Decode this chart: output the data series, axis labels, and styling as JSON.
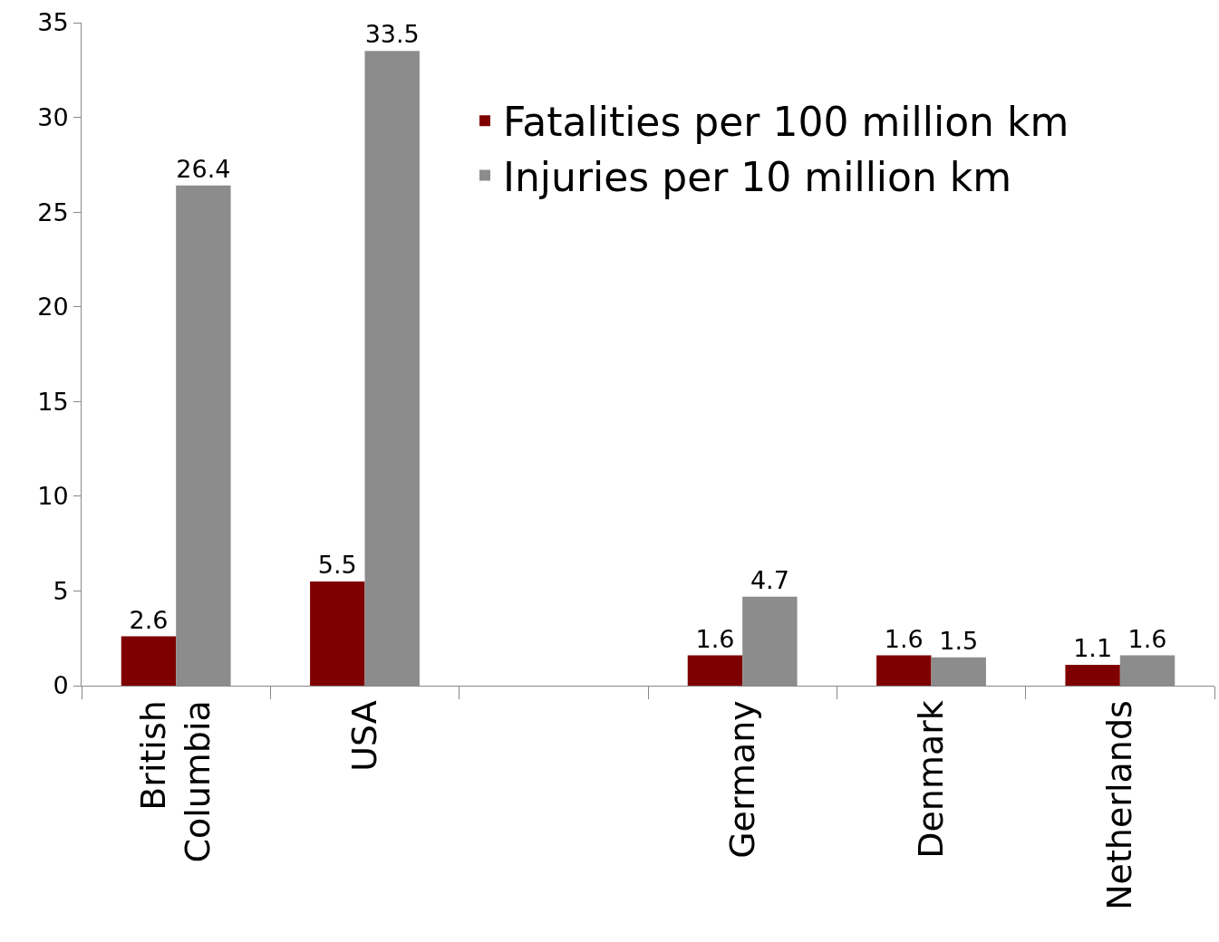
{
  "chart_data": {
    "type": "bar",
    "categories": [
      "British Columbia",
      "USA",
      null,
      "Germany",
      "Denmark",
      "Netherlands"
    ],
    "series": [
      {
        "name": "Fatalities per 100 million km",
        "color": "#7f0000",
        "values": [
          2.6,
          5.5,
          null,
          1.6,
          1.6,
          1.1
        ]
      },
      {
        "name": "Injuries per 10 million km",
        "color": "#8c8c8c",
        "values": [
          26.4,
          33.5,
          null,
          4.7,
          1.5,
          1.6
        ]
      }
    ],
    "ylim": [
      0,
      35
    ],
    "yticks": [
      0,
      5,
      10,
      15,
      20,
      25,
      30,
      35
    ],
    "data_labels": true,
    "grid": false,
    "legend": "top right"
  }
}
